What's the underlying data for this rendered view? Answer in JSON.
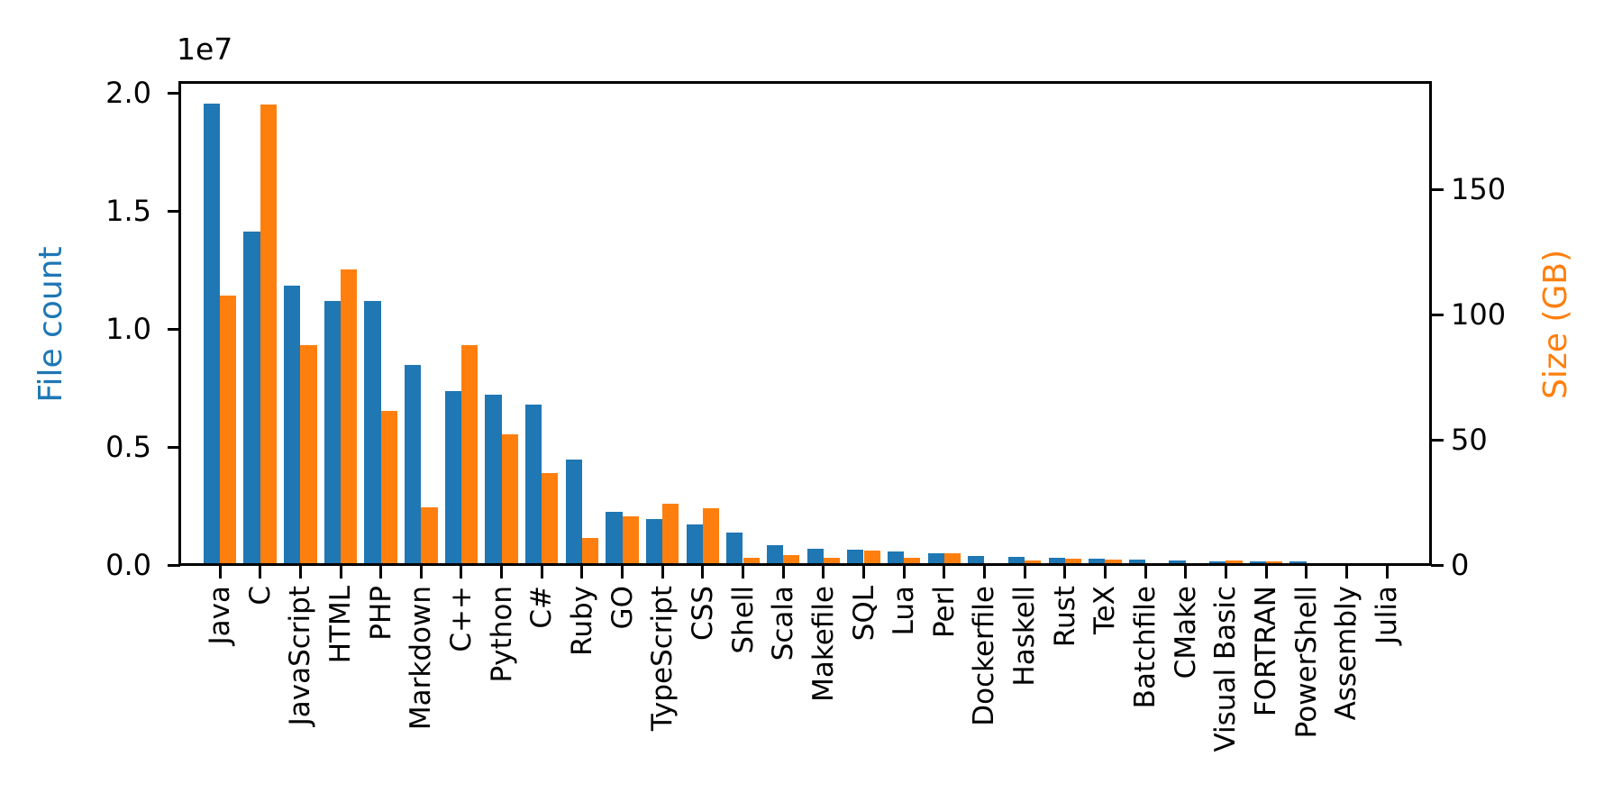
{
  "chart_data": {
    "type": "bar",
    "title": "",
    "categories": [
      "Java",
      "C",
      "JavaScript",
      "HTML",
      "PHP",
      "Markdown",
      "C++",
      "Python",
      "C#",
      "Ruby",
      "GO",
      "TypeScript",
      "CSS",
      "Shell",
      "Scala",
      "Makefile",
      "SQL",
      "Lua",
      "Perl",
      "Dockerfile",
      "Haskell",
      "Rust",
      "TeX",
      "Batchfile",
      "CMake",
      "Visual Basic",
      "FORTRAN",
      "PowerShell",
      "Assembly",
      "Julia"
    ],
    "series": [
      {
        "name": "File count",
        "axis": "left",
        "color": "#1f77b4",
        "values": [
          19548190,
          14143113,
          11839883,
          11178557,
          11177610,
          8464626,
          7380520,
          7226626,
          6811652,
          4473331,
          2265436,
          1940406,
          1734951,
          1385648,
          835755,
          679430,
          656671,
          578554,
          497949,
          366505,
          340380,
          322431,
          251527,
          236945,
          175282,
          155652,
          142038,
          136846,
          82905,
          58317
        ]
      },
      {
        "name": "Size (GB)",
        "axis": "right",
        "color": "#ff7f0e",
        "values": [
          107.7,
          183.83,
          87.82,
          118.12,
          61.41,
          23.09,
          87.73,
          52.03,
          36.83,
          10.95,
          19.28,
          24.59,
          22.67,
          3.01,
          3.87,
          2.92,
          5.67,
          2.81,
          4.7,
          0.71,
          1.85,
          2.68,
          2.15,
          0.7,
          0.54,
          1.91,
          1.62,
          0.69,
          0.78,
          0.29
        ]
      }
    ],
    "left_axis": {
      "label": "File count",
      "color": "#1f77b4",
      "offset_text": "1e7",
      "tick_values": [
        0,
        5000000,
        10000000,
        15000000,
        20000000
      ],
      "tick_labels": [
        "0.0",
        "0.5",
        "1.0",
        "1.5",
        "2.0"
      ],
      "ylim": [
        0,
        20430000
      ]
    },
    "right_axis": {
      "label": "Size (GB)",
      "color": "#ff7f0e",
      "tick_values": [
        0,
        50,
        100,
        150
      ],
      "tick_labels": [
        "0",
        "50",
        "100",
        "150"
      ],
      "ylim": [
        0,
        192.5
      ]
    },
    "grid": false,
    "legend": "none",
    "xlabel_rotation_deg": 90
  },
  "colors": {
    "bar_blue": "#1f77b4",
    "bar_orange": "#ff7f0e",
    "axis": "#000000",
    "background": "#ffffff"
  }
}
